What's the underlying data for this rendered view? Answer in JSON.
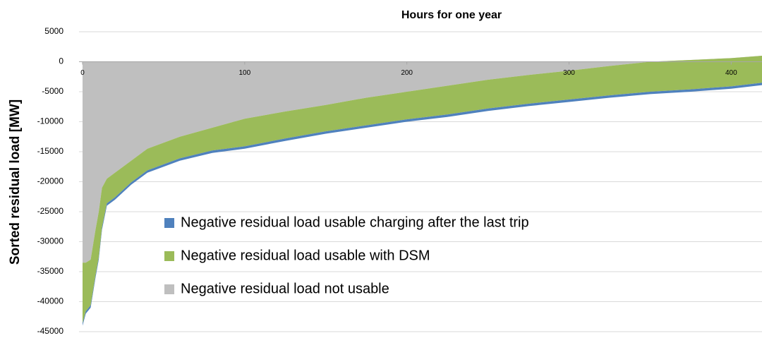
{
  "chart_data": {
    "type": "stacked_area",
    "title": "Hours  for one year",
    "y_label": "Sorted  residual load [MW]",
    "x": [
      0,
      2,
      5,
      8,
      10,
      12,
      15,
      20,
      30,
      40,
      50,
      60,
      80,
      100,
      125,
      150,
      175,
      200,
      225,
      250,
      275,
      300,
      325,
      350,
      375,
      400,
      419
    ],
    "series": [
      {
        "name": "Negative residual load not usable",
        "color": "#bfbfbf",
        "values": [
          -33500,
          -33500,
          -33000,
          -28000,
          -25000,
          -21000,
          -19500,
          -18500,
          -16500,
          -14500,
          -13500,
          -12500,
          -11000,
          -9500,
          -8300,
          -7200,
          -6000,
          -5000,
          -4000,
          -3000,
          -2200,
          -1500,
          -700,
          0,
          300,
          600,
          1000
        ]
      },
      {
        "name": "Negative residual load usable with DSM",
        "color": "#9bbb59",
        "values": [
          -10100,
          -8100,
          -7600,
          -7600,
          -7600,
          -6600,
          -4100,
          -4100,
          -3600,
          -3600,
          -3600,
          -3600,
          -3800,
          -4600,
          -4500,
          -4400,
          -4600,
          -4600,
          -4800,
          -4800,
          -4800,
          -4800,
          -4900,
          -5000,
          -4900,
          -4700,
          -4500
        ]
      },
      {
        "name": "Negative residual load usable charging after the last trip",
        "color": "#4f81bd",
        "values": [
          -400,
          -400,
          -400,
          -400,
          -400,
          -400,
          -400,
          -400,
          -400,
          -400,
          -400,
          -400,
          -400,
          -400,
          -400,
          -400,
          -400,
          -400,
          -400,
          -400,
          -400,
          -400,
          -400,
          -400,
          -400,
          -400,
          -400
        ]
      }
    ],
    "xlim": [
      0,
      419
    ],
    "xticks": [
      0,
      100,
      200,
      300,
      400
    ],
    "ylim": [
      -45000,
      5000
    ],
    "yticks": [
      5000,
      0,
      -5000,
      -10000,
      -15000,
      -20000,
      -25000,
      -30000,
      -35000,
      -40000,
      -45000
    ],
    "grid": true
  }
}
